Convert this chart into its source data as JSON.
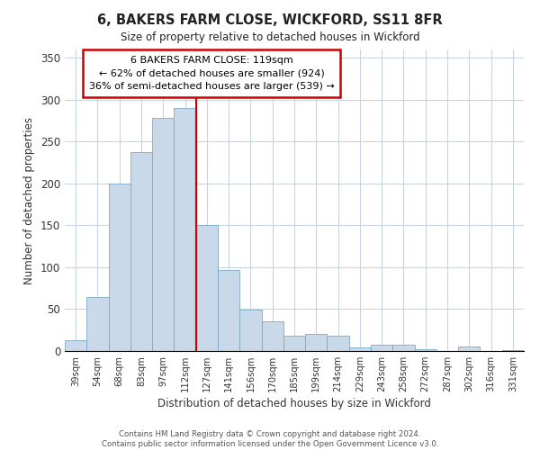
{
  "title": "6, BAKERS FARM CLOSE, WICKFORD, SS11 8FR",
  "subtitle": "Size of property relative to detached houses in Wickford",
  "xlabel": "Distribution of detached houses by size in Wickford",
  "ylabel": "Number of detached properties",
  "bar_labels": [
    "39sqm",
    "54sqm",
    "68sqm",
    "83sqm",
    "97sqm",
    "112sqm",
    "127sqm",
    "141sqm",
    "156sqm",
    "170sqm",
    "185sqm",
    "199sqm",
    "214sqm",
    "229sqm",
    "243sqm",
    "258sqm",
    "272sqm",
    "287sqm",
    "302sqm",
    "316sqm",
    "331sqm"
  ],
  "bar_values": [
    13,
    65,
    200,
    238,
    278,
    290,
    150,
    97,
    49,
    35,
    18,
    20,
    18,
    4,
    8,
    7,
    2,
    0,
    5,
    0,
    1
  ],
  "bar_color": "#c9d9ea",
  "bar_edge_color": "#7baac8",
  "highlight_bar_index": 5,
  "highlight_line_color": "#cc0000",
  "ylim": [
    0,
    360
  ],
  "yticks": [
    0,
    50,
    100,
    150,
    200,
    250,
    300,
    350
  ],
  "annotation_title": "6 BAKERS FARM CLOSE: 119sqm",
  "annotation_line1": "← 62% of detached houses are smaller (924)",
  "annotation_line2": "36% of semi-detached houses are larger (539) →",
  "annotation_box_color": "#ffffff",
  "annotation_box_edge_color": "#cc0000",
  "footer_line1": "Contains HM Land Registry data © Crown copyright and database right 2024.",
  "footer_line2": "Contains public sector information licensed under the Open Government Licence v3.0.",
  "background_color": "#ffffff",
  "grid_color": "#c8d4e0"
}
